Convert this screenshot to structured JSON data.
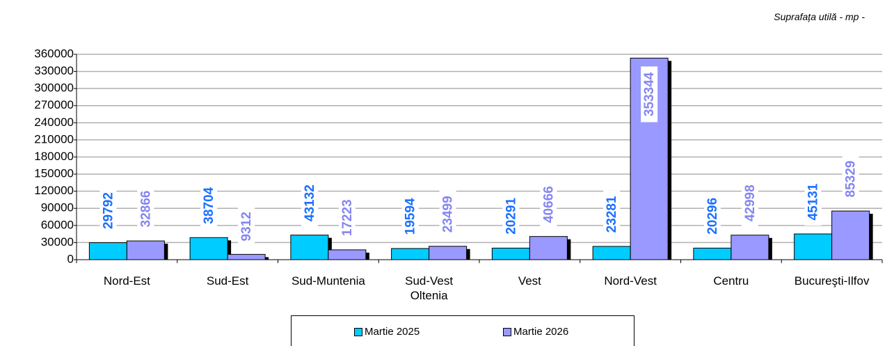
{
  "chart_data": {
    "type": "bar",
    "subtitle": "Suprafața utilă - mp -",
    "categories": [
      "Nord-Est",
      "Sud-Est",
      "Sud-Muntenia",
      "Sud-Vest Oltenia",
      "Vest",
      "Nord-Vest",
      "Centru",
      "Bucureşti-Ilfov"
    ],
    "series": [
      {
        "name": "Martie 2025",
        "color": "#00ccff",
        "label_color": "#1a6fff",
        "values": [
          29792,
          38704,
          43132,
          19594,
          20291,
          23281,
          20296,
          45131
        ]
      },
      {
        "name": "Martie 2026",
        "color": "#9999ff",
        "label_color": "#8585f0",
        "values": [
          32866,
          9312,
          17223,
          23499,
          40666,
          353344,
          42998,
          85329
        ]
      }
    ],
    "ylim": [
      0,
      360000
    ],
    "yticks": [
      0,
      30000,
      60000,
      90000,
      120000,
      150000,
      180000,
      210000,
      240000,
      270000,
      300000,
      330000,
      360000
    ],
    "grid": true
  }
}
